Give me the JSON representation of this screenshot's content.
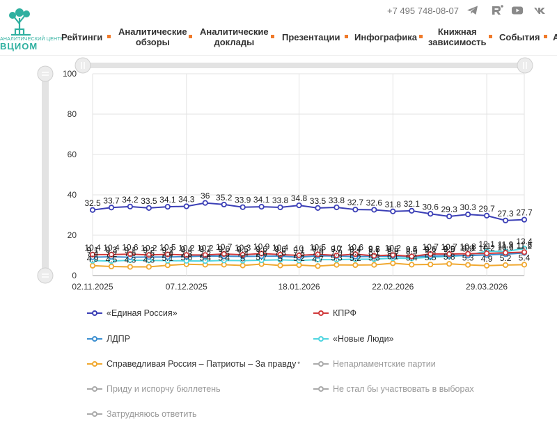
{
  "header": {
    "logo_caption": "АНАЛИТИЧЕСКИЙ ЦЕНТР",
    "logo_name": "ВЦИОМ",
    "phone": "+7 495 748-08-07",
    "social_icons": [
      "telegram-icon",
      "rutube-icon",
      "youtube-icon",
      "vk-icon"
    ],
    "nav": [
      {
        "label": "Рейтинги"
      },
      {
        "label": "Аналитические\nобзоры"
      },
      {
        "label": "Аналитические\nдоклады"
      },
      {
        "label": "Презентации"
      },
      {
        "label": "Инфографика"
      },
      {
        "label": "Книжная\nзависимость"
      },
      {
        "label": "События"
      },
      {
        "label": "А"
      }
    ],
    "accent": "#f07a2a"
  },
  "chart_data": {
    "type": "line",
    "ylim": [
      0,
      100
    ],
    "y_ticks": [
      "0",
      "20",
      "40",
      "60",
      "80",
      "100"
    ],
    "x_tick_labels": [
      "02.11.2025",
      "07.12.2025",
      "18.01.2026",
      "22.02.2026",
      "29.03.2026"
    ],
    "grid": true,
    "legend_position": "bottom",
    "series": [
      {
        "name": "«Единая Россия»",
        "color": "#3b3fb6",
        "visible": true,
        "values": [
          32.5,
          33.7,
          34.2,
          33.5,
          34.1,
          34.3,
          36,
          35.2,
          33.9,
          34.1,
          33.8,
          34.8,
          33.5,
          33.8,
          32.7,
          32.6,
          31.8,
          32.1,
          30.6,
          29.3,
          30.3,
          29.7,
          27.3,
          27.7
        ]
      },
      {
        "name": "КПРФ",
        "color": "#d0393b",
        "visible": true,
        "values": [
          10.4,
          10.4,
          10.6,
          10.2,
          10.5,
          10.2,
          10.2,
          10.7,
          10.3,
          10.9,
          10.4,
          10,
          10.5,
          10,
          10.6,
          9.8,
          10.2,
          9.5,
          10.7,
          10.7,
          10.8,
          11,
          11.3,
          11.6
        ]
      },
      {
        "name": "ЛДПР",
        "color": "#3c8fd0",
        "visible": true,
        "values": [
          9.1,
          9.3,
          9.1,
          9.2,
          9.2,
          9.4,
          9.7,
          9.6,
          9.5,
          9.6,
          9.6,
          9.1,
          9.8,
          9.7,
          9.4,
          9.5,
          9.6,
          9.4,
          9.6,
          9.9,
          9.9,
          10.2,
          10.6,
          11.2
        ]
      },
      {
        "name": "«Новые Люди»",
        "color": "#4fd5e0",
        "visible": true,
        "values": [
          7.4,
          7.2,
          7.6,
          7.5,
          7.4,
          7.3,
          7.2,
          7.5,
          7.4,
          7.6,
          7.8,
          7.5,
          7.9,
          7.9,
          8.1,
          8.1,
          8.6,
          8.5,
          9.1,
          9.5,
          10.1,
          12.1,
          11.9,
          13.4
        ]
      },
      {
        "name": "Справедливая Россия – Патриоты – За правду",
        "color": "#f0a830",
        "visible": true,
        "values": [
          4.9,
          4.5,
          4.3,
          4.3,
          5.1,
          5.6,
          5.4,
          5.4,
          5,
          5.7,
          5,
          5.2,
          4.7,
          5.3,
          5.2,
          5.3,
          6.1,
          5.4,
          5.5,
          5.8,
          5.3,
          4.9,
          5.2,
          5.4
        ]
      },
      {
        "name": "Непарламентские партии",
        "color": "#aaaaaa",
        "visible": false
      },
      {
        "name": "Приду и испорчу бюллетень",
        "color": "#aaaaaa",
        "visible": false
      },
      {
        "name": "Не стал бы участвовать в выборах",
        "color": "#aaaaaa",
        "visible": false
      },
      {
        "name": "Затрудняюсь ответить",
        "color": "#aaaaaa",
        "visible": false
      }
    ],
    "label_precision_note": ""
  }
}
